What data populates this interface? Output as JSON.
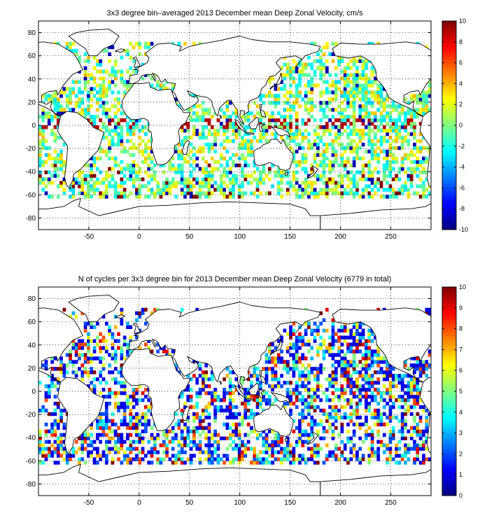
{
  "chart_data": [
    {
      "type": "heatmap",
      "title": "3x3 degree bin–averaged 2013 December mean Deep Zonal Velocity, cm/s",
      "xlabel": "",
      "ylabel": "",
      "xlim": [
        -100,
        290
      ],
      "ylim": [
        -90,
        90
      ],
      "xticks": [
        -50,
        0,
        50,
        100,
        150,
        200,
        250
      ],
      "yticks": [
        80,
        60,
        40,
        20,
        0,
        -20,
        -40,
        -60,
        -80
      ],
      "grid": true,
      "colormap": "jet",
      "clim": [
        -10,
        10
      ],
      "colorbar_ticks": [
        10,
        8,
        6,
        4,
        2,
        0,
        -2,
        -4,
        -6,
        -8,
        -10
      ],
      "bin_size_deg": 3
    },
    {
      "type": "heatmap",
      "title": "N of cycles per 3x3 degree bin for 2013 December mean Deep Zonal Velocity (6779 in total)",
      "xlabel": "",
      "ylabel": "",
      "xlim": [
        -100,
        290
      ],
      "ylim": [
        -90,
        90
      ],
      "xticks": [
        -50,
        0,
        50,
        100,
        150,
        200,
        250
      ],
      "yticks": [
        80,
        60,
        40,
        20,
        0,
        -20,
        -40,
        -60,
        -80
      ],
      "grid": true,
      "colormap": "jet",
      "clim": [
        0,
        10
      ],
      "colorbar_ticks": [
        10,
        9,
        8,
        7,
        6,
        5,
        4,
        3,
        2,
        1,
        0
      ],
      "total_cycles": 6779,
      "bin_size_deg": 3
    }
  ]
}
